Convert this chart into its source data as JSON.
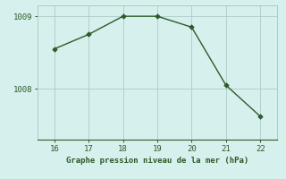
{
  "x": [
    16,
    17,
    18,
    19,
    20,
    21,
    22
  ],
  "y": [
    1008.55,
    1008.75,
    1009.0,
    1009.0,
    1008.85,
    1008.05,
    1007.62
  ],
  "line_color": "#2d5a27",
  "marker_color": "#2d5a27",
  "background_color": "#d6f0ee",
  "grid_color": "#aaccc8",
  "xlabel": "Graphe pression niveau de la mer (hPa)",
  "xlabel_color": "#2d5a27",
  "tick_label_color": "#2d5a27",
  "ylim": [
    1007.3,
    1009.15
  ],
  "yticks": [
    1008,
    1009
  ],
  "xlim": [
    15.5,
    22.5
  ],
  "xticks": [
    16,
    17,
    18,
    19,
    20,
    21,
    22
  ]
}
